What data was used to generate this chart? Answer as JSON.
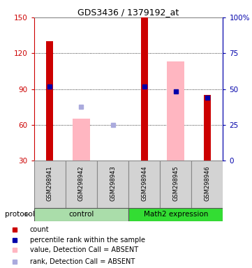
{
  "title": "GDS3436 / 1379192_at",
  "samples": [
    "GSM298941",
    "GSM298942",
    "GSM298943",
    "GSM298944",
    "GSM298945",
    "GSM298946"
  ],
  "ylim_left": [
    30,
    150
  ],
  "yticks_left": [
    30,
    60,
    90,
    120,
    150
  ],
  "ytick_right_labels": [
    "0",
    "25",
    "50",
    "75",
    "100%"
  ],
  "red_bars": [
    130,
    null,
    null,
    150,
    null,
    85
  ],
  "red_bar_color": "#CC0000",
  "pink_bars": [
    null,
    65,
    30,
    null,
    113,
    null
  ],
  "pink_bar_color": "#FFB6C1",
  "blue_squares": [
    92,
    null,
    null,
    92,
    88,
    83
  ],
  "blue_square_color": "#0000AA",
  "light_blue_squares": [
    null,
    75,
    60,
    null,
    null,
    null
  ],
  "light_blue_square_color": "#AAAADD",
  "sample_cell_color": "#D3D3D3",
  "sample_cell_edge_color": "#888888",
  "bg_color": "#FFFFFF",
  "left_axis_color": "#CC0000",
  "right_axis_color": "#0000AA",
  "grid_color": "#000000",
  "ctrl_color": "#AADDAA",
  "math_color": "#33DD33",
  "legend_items": [
    {
      "label": "count",
      "color": "#CC0000"
    },
    {
      "label": "percentile rank within the sample",
      "color": "#0000AA"
    },
    {
      "label": "value, Detection Call = ABSENT",
      "color": "#FFB6C1"
    },
    {
      "label": "rank, Detection Call = ABSENT",
      "color": "#AAAADD"
    }
  ]
}
